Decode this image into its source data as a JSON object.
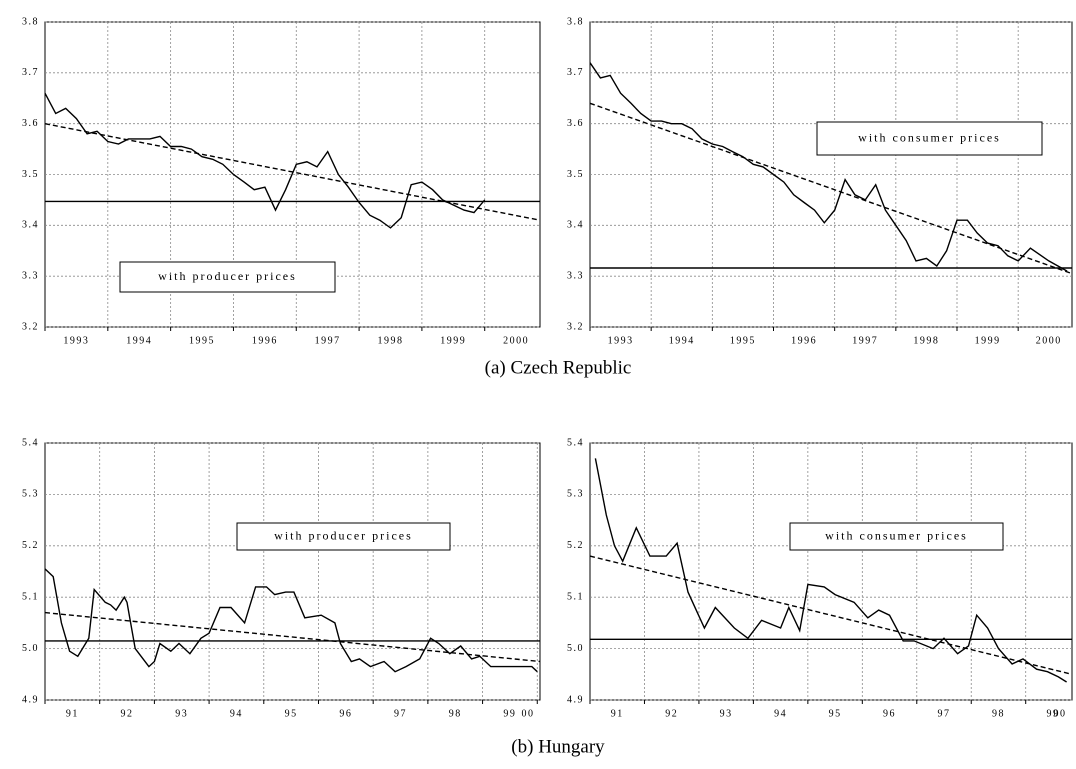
{
  "captions": [
    "(a) Czech Republic",
    "(b) Hungary"
  ],
  "chart_data": [
    {
      "type": "line",
      "annotation": "with producer prices",
      "xlim": [
        1993,
        2000.88
      ],
      "xticks": [
        1993,
        1994,
        1995,
        1996,
        1997,
        1998,
        1999,
        2000
      ],
      "ylim": [
        3.2,
        3.8
      ],
      "yticks": [
        3.2,
        3.3,
        3.4,
        3.5,
        3.6,
        3.7,
        3.8
      ],
      "grid": true,
      "series": [
        {
          "color": "#000000",
          "dashed": false,
          "x": [
            1993,
            1993.17,
            1993.33,
            1993.5,
            1993.67,
            1993.83,
            1994,
            1994.17,
            1994.33,
            1994.5,
            1994.67,
            1994.83,
            1995,
            1995.17,
            1995.33,
            1995.5,
            1995.67,
            1995.83,
            1996,
            1996.17,
            1996.33,
            1996.5,
            1996.67,
            1996.83,
            1997,
            1997.17,
            1997.33,
            1997.5,
            1997.67,
            1997.83,
            1998,
            1998.17,
            1998.33,
            1998.5,
            1998.67,
            1998.83,
            1999,
            1999.17,
            1999.33,
            1999.5,
            1999.67,
            1999.83,
            2000
          ],
          "values": [
            3.66,
            3.62,
            3.63,
            3.61,
            3.58,
            3.585,
            3.565,
            3.56,
            3.57,
            3.57,
            3.57,
            3.575,
            3.555,
            3.555,
            3.55,
            3.535,
            3.53,
            3.52,
            3.5,
            3.485,
            3.47,
            3.475,
            3.43,
            3.47,
            3.52,
            3.525,
            3.515,
            3.545,
            3.5,
            3.475,
            3.445,
            3.42,
            3.41,
            3.395,
            3.415,
            3.48,
            3.485,
            3.47,
            3.45,
            3.44,
            3.43,
            3.425,
            3.45
          ]
        },
        {
          "color": "#000000",
          "dashed": true,
          "x": [
            1993,
            2000.88
          ],
          "values": [
            3.6,
            3.41
          ]
        },
        {
          "color": "#000000",
          "dashed": false,
          "x": [
            1993,
            2000.88
          ],
          "values": [
            3.447,
            3.447
          ]
        }
      ]
    },
    {
      "type": "line",
      "annotation": "with consumer prices",
      "xlim": [
        1993,
        2000.88
      ],
      "xticks": [
        1993,
        1994,
        1995,
        1996,
        1997,
        1998,
        1999,
        2000
      ],
      "ylim": [
        3.2,
        3.8
      ],
      "yticks": [
        3.2,
        3.3,
        3.4,
        3.5,
        3.6,
        3.7,
        3.8
      ],
      "grid": true,
      "series": [
        {
          "color": "#000000",
          "dashed": false,
          "x": [
            1993,
            1993.17,
            1993.33,
            1993.5,
            1993.67,
            1993.83,
            1994,
            1994.17,
            1994.33,
            1994.5,
            1994.67,
            1994.83,
            1995,
            1995.17,
            1995.33,
            1995.5,
            1995.67,
            1995.83,
            1996,
            1996.17,
            1996.33,
            1996.5,
            1996.67,
            1996.83,
            1997,
            1997.17,
            1997.33,
            1997.5,
            1997.67,
            1997.83,
            1998,
            1998.17,
            1998.33,
            1998.5,
            1998.67,
            1998.83,
            1999,
            1999.17,
            1999.33,
            1999.5,
            1999.67,
            1999.83,
            2000,
            2000.2,
            2000.5,
            2000.8
          ],
          "values": [
            3.72,
            3.69,
            3.695,
            3.66,
            3.64,
            3.62,
            3.605,
            3.605,
            3.6,
            3.6,
            3.59,
            3.57,
            3.56,
            3.555,
            3.545,
            3.535,
            3.52,
            3.515,
            3.5,
            3.485,
            3.46,
            3.445,
            3.43,
            3.405,
            3.43,
            3.49,
            3.46,
            3.45,
            3.48,
            3.43,
            3.4,
            3.37,
            3.33,
            3.335,
            3.32,
            3.35,
            3.41,
            3.41,
            3.385,
            3.365,
            3.36,
            3.34,
            3.33,
            3.355,
            3.33,
            3.31
          ]
        },
        {
          "color": "#000000",
          "dashed": true,
          "x": [
            1993,
            2000.88
          ],
          "values": [
            3.64,
            3.305
          ]
        },
        {
          "color": "#000000",
          "dashed": false,
          "x": [
            1993,
            2000.88
          ],
          "values": [
            3.316,
            3.316
          ]
        }
      ]
    },
    {
      "type": "line",
      "annotation": "with producer prices",
      "xlim": [
        1991,
        2000.05
      ],
      "xticks": [
        {
          "value": 1991,
          "label": "91"
        },
        {
          "value": 1992,
          "label": "92"
        },
        {
          "value": 1993,
          "label": "93"
        },
        {
          "value": 1994,
          "label": "94"
        },
        {
          "value": 1995,
          "label": "95"
        },
        {
          "value": 1996,
          "label": "96"
        },
        {
          "value": 1997,
          "label": "97"
        },
        {
          "value": 1998,
          "label": "98"
        },
        {
          "value": 1999,
          "label": "99"
        },
        {
          "value": 2000,
          "label": "00"
        }
      ],
      "ylim": [
        4.9,
        5.4
      ],
      "yticks": [
        4.9,
        {
          "value": 5,
          "label": "5.0"
        },
        5.1,
        5.2,
        5.3,
        5.4
      ],
      "grid": true,
      "series": [
        {
          "color": "#000000",
          "dashed": false,
          "x": [
            1991,
            1991.15,
            1991.3,
            1991.45,
            1991.6,
            1991.8,
            1991.9,
            1992.1,
            1992.2,
            1992.3,
            1992.45,
            1992.5,
            1992.65,
            1992.9,
            1993,
            1993.1,
            1993.3,
            1993.45,
            1993.65,
            1993.85,
            1994,
            1994.2,
            1994.4,
            1994.65,
            1994.85,
            1995.05,
            1995.2,
            1995.4,
            1995.55,
            1995.75,
            1996.05,
            1996.3,
            1996.4,
            1996.6,
            1996.75,
            1996.95,
            1997.2,
            1997.4,
            1997.6,
            1997.85,
            1998.05,
            1998.2,
            1998.4,
            1998.6,
            1998.8,
            1998.95,
            1999.15,
            1999.6,
            1999.9,
            2000
          ],
          "values": [
            5.155,
            5.14,
            5.05,
            4.995,
            4.985,
            5.02,
            5.115,
            5.09,
            5.085,
            5.075,
            5.1,
            5.09,
            5,
            4.965,
            4.975,
            5.01,
            4.995,
            5.01,
            4.99,
            5.02,
            5.03,
            5.08,
            5.08,
            5.05,
            5.12,
            5.12,
            5.105,
            5.11,
            5.11,
            5.06,
            5.065,
            5.05,
            5.01,
            4.975,
            4.98,
            4.965,
            4.975,
            4.955,
            4.965,
            4.98,
            5.02,
            5.01,
            4.99,
            5.005,
            4.98,
            4.985,
            4.965,
            4.965,
            4.965,
            4.955
          ]
        },
        {
          "color": "#000000",
          "dashed": true,
          "x": [
            1991,
            2000.05
          ],
          "values": [
            5.07,
            4.975
          ]
        },
        {
          "color": "#000000",
          "dashed": false,
          "x": [
            1991,
            2000.05
          ],
          "values": [
            5.015,
            5.015
          ]
        }
      ]
    },
    {
      "type": "line",
      "annotation": "with consumer prices",
      "xlim": [
        1991,
        1999.85
      ],
      "xticks": [
        {
          "value": 1991,
          "label": "91"
        },
        {
          "value": 1992,
          "label": "92"
        },
        {
          "value": 1993,
          "label": "93"
        },
        {
          "value": 1994,
          "label": "94"
        },
        {
          "value": 1995,
          "label": "95"
        },
        {
          "value": 1996,
          "label": "96"
        },
        {
          "value": 1997,
          "label": "97"
        },
        {
          "value": 1998,
          "label": "98"
        },
        {
          "value": 1999,
          "label": "99"
        },
        {
          "value": 2000,
          "label": "00"
        }
      ],
      "ylim": [
        4.9,
        5.4
      ],
      "yticks": [
        4.9,
        {
          "value": 5,
          "label": "5.0"
        },
        5.1,
        5.2,
        5.3,
        5.4
      ],
      "grid": true,
      "series": [
        {
          "color": "#000000",
          "dashed": false,
          "x": [
            1991.1,
            1991.3,
            1991.45,
            1991.6,
            1991.85,
            1992.1,
            1992.4,
            1992.6,
            1992.8,
            1993.1,
            1993.3,
            1993.65,
            1993.9,
            1994.15,
            1994.5,
            1994.65,
            1994.85,
            1995,
            1995.3,
            1995.5,
            1995.85,
            1996.1,
            1996.3,
            1996.5,
            1996.75,
            1996.95,
            1997.3,
            1997.5,
            1997.75,
            1997.95,
            1998.1,
            1998.3,
            1998.5,
            1998.75,
            1998.95,
            1999.2,
            1999.4,
            1999.6,
            1999.75
          ],
          "values": [
            5.37,
            5.26,
            5.2,
            5.17,
            5.235,
            5.18,
            5.18,
            5.205,
            5.11,
            5.04,
            5.08,
            5.04,
            5.02,
            5.055,
            5.04,
            5.08,
            5.035,
            5.125,
            5.12,
            5.105,
            5.09,
            5.06,
            5.075,
            5.065,
            5.015,
            5.015,
            5,
            5.02,
            4.99,
            5.005,
            5.065,
            5.04,
            5,
            4.97,
            4.98,
            4.96,
            4.955,
            4.945,
            4.935
          ]
        },
        {
          "color": "#000000",
          "dashed": true,
          "x": [
            1991,
            1999.85
          ],
          "values": [
            5.18,
            4.95
          ]
        },
        {
          "color": "#000000",
          "dashed": false,
          "x": [
            1991,
            1999.85
          ],
          "values": [
            5.018,
            5.018
          ]
        }
      ]
    }
  ]
}
